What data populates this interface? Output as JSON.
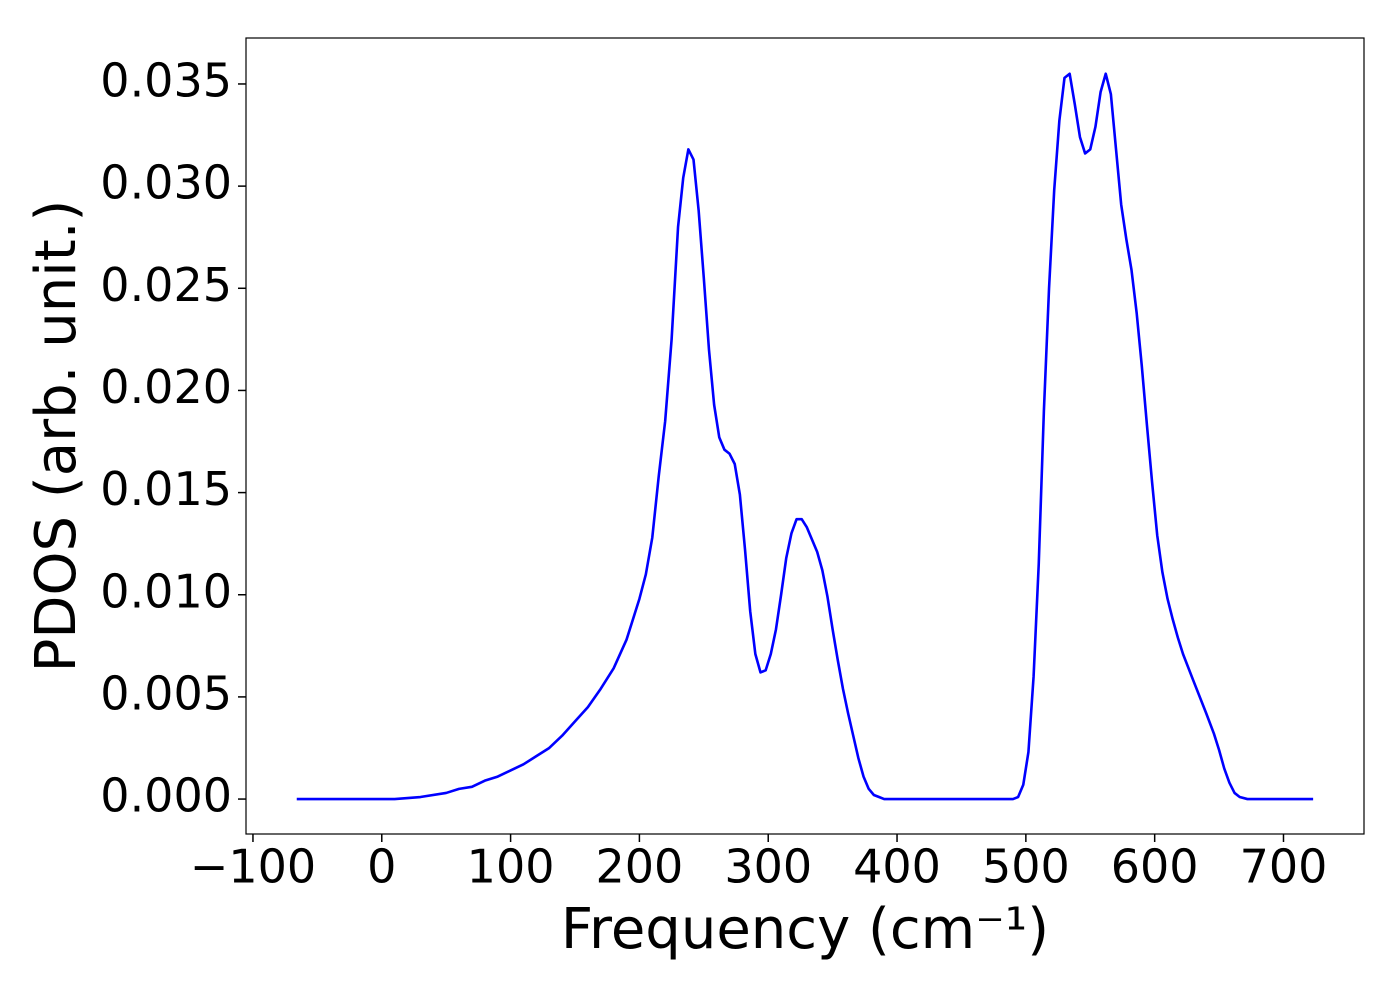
{
  "chart_data": {
    "type": "line",
    "xlabel": "Frequency (cm⁻¹)",
    "ylabel": "PDOS (arb. unit.)",
    "x": [
      -66,
      0,
      10,
      30,
      50,
      60,
      70,
      80,
      90,
      100,
      110,
      120,
      130,
      140,
      150,
      160,
      170,
      180,
      190,
      200,
      205,
      210,
      215,
      220,
      225,
      230,
      234,
      238,
      242,
      246,
      250,
      254,
      258,
      262,
      266,
      270,
      274,
      278,
      282,
      286,
      290,
      294,
      298,
      302,
      306,
      310,
      314,
      318,
      322,
      326,
      330,
      334,
      338,
      342,
      346,
      350,
      354,
      358,
      362,
      366,
      370,
      374,
      378,
      382,
      386,
      390,
      490,
      494,
      498,
      502,
      506,
      510,
      514,
      518,
      522,
      526,
      530,
      534,
      538,
      542,
      546,
      550,
      554,
      558,
      562,
      566,
      570,
      574,
      578,
      582,
      586,
      590,
      594,
      598,
      602,
      606,
      610,
      614,
      618,
      622,
      630,
      640,
      646,
      650,
      654,
      658,
      662,
      666,
      672,
      723
    ],
    "series": [
      {
        "color": "#0000ff",
        "values": [
          0,
          0,
          0,
          0.0001,
          0.0003,
          0.0005,
          0.0006,
          0.0009,
          0.0011,
          0.0014,
          0.0017,
          0.0021,
          0.0025,
          0.0031,
          0.0038,
          0.0045,
          0.0054,
          0.0064,
          0.0078,
          0.0098,
          0.011,
          0.0128,
          0.0158,
          0.0185,
          0.0225,
          0.028,
          0.0304,
          0.0318,
          0.0313,
          0.0288,
          0.0255,
          0.022,
          0.0193,
          0.0177,
          0.0171,
          0.0169,
          0.0164,
          0.0149,
          0.0122,
          0.0092,
          0.0071,
          0.0062,
          0.0063,
          0.0071,
          0.0083,
          0.01,
          0.0118,
          0.013,
          0.0137,
          0.0137,
          0.0133,
          0.0127,
          0.0121,
          0.0112,
          0.0099,
          0.0083,
          0.0068,
          0.0054,
          0.0042,
          0.0031,
          0.002,
          0.0011,
          0.0005,
          0.0002,
          0.0001,
          0,
          0,
          0.0001,
          0.0007,
          0.0023,
          0.006,
          0.0115,
          0.019,
          0.025,
          0.0298,
          0.0332,
          0.0353,
          0.0355,
          0.034,
          0.0324,
          0.0316,
          0.0318,
          0.0329,
          0.0346,
          0.0355,
          0.0345,
          0.0318,
          0.0291,
          0.0274,
          0.0259,
          0.0238,
          0.0212,
          0.0183,
          0.0155,
          0.0129,
          0.0111,
          0.0098,
          0.0088,
          0.0079,
          0.0071,
          0.0058,
          0.0042,
          0.0032,
          0.0024,
          0.0015,
          0.0008,
          0.0003,
          0.0001,
          0,
          0
        ]
      }
    ],
    "xlim": [
      -105.4,
      762.5
    ],
    "ylim": [
      -0.00171,
      0.03725
    ],
    "xticks": [
      {
        "value": -100,
        "label": "−100"
      },
      0,
      100,
      200,
      300,
      400,
      500,
      600,
      700
    ],
    "yticks": [
      {
        "value": 0,
        "label": "0.000"
      },
      {
        "value": 0.005,
        "label": "0.005"
      },
      {
        "value": 0.01,
        "label": "0.010"
      },
      {
        "value": 0.015,
        "label": "0.015"
      },
      {
        "value": 0.02,
        "label": "0.020"
      },
      {
        "value": 0.025,
        "label": "0.025"
      },
      {
        "value": 0.03,
        "label": "0.030"
      },
      {
        "value": 0.035,
        "label": "0.035"
      }
    ],
    "grid": false
  }
}
